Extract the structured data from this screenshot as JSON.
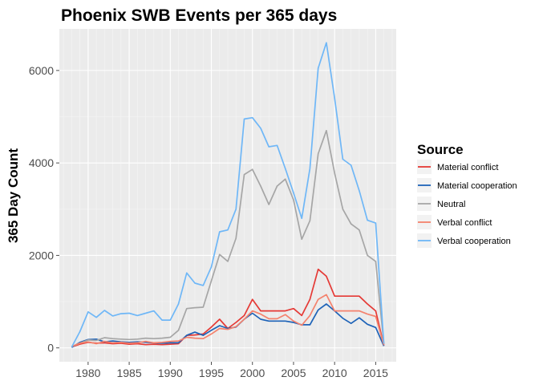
{
  "chart_data": {
    "type": "line",
    "title": "Phoenix SWB Events per 365 days",
    "xlabel": "",
    "ylabel": "365 Day Count",
    "xlim": [
      1976.5,
      2017.5
    ],
    "ylim": [
      -300,
      6900
    ],
    "xticks": [
      1980,
      1985,
      1990,
      1995,
      2000,
      2005,
      2010,
      2015
    ],
    "yticks": [
      0,
      2000,
      4000,
      6000
    ],
    "grid": true,
    "legend": {
      "title": "Source",
      "position": "right"
    },
    "x": [
      1978,
      1979,
      1980,
      1981,
      1982,
      1983,
      1984,
      1985,
      1986,
      1987,
      1988,
      1989,
      1990,
      1991,
      1992,
      1993,
      1994,
      1995,
      1996,
      1997,
      1998,
      1999,
      2000,
      2001,
      2002,
      2003,
      2004,
      2005,
      2006,
      2007,
      2008,
      2009,
      2010,
      2011,
      2012,
      2013,
      2014,
      2015,
      2016
    ],
    "series": [
      {
        "name": "Material conflict",
        "color": "#e53935",
        "values": [
          20,
          80,
          120,
          100,
          110,
          90,
          100,
          80,
          90,
          70,
          80,
          70,
          80,
          90,
          270,
          280,
          300,
          450,
          620,
          420,
          550,
          700,
          1050,
          800,
          800,
          800,
          800,
          850,
          700,
          1050,
          1700,
          1550,
          1120,
          1120,
          1120,
          1120,
          950,
          800,
          50
        ]
      },
      {
        "name": "Material cooperation",
        "color": "#1e63b8",
        "values": [
          10,
          120,
          180,
          190,
          130,
          150,
          130,
          120,
          130,
          120,
          110,
          100,
          110,
          110,
          270,
          340,
          270,
          380,
          480,
          420,
          450,
          620,
          750,
          620,
          580,
          580,
          580,
          550,
          500,
          500,
          820,
          950,
          800,
          640,
          530,
          650,
          510,
          440,
          40
        ]
      },
      {
        "name": "Neutral",
        "color": "#a6a6a6",
        "values": [
          30,
          100,
          170,
          160,
          220,
          200,
          190,
          180,
          190,
          210,
          200,
          210,
          230,
          380,
          850,
          870,
          880,
          1450,
          2020,
          1870,
          2370,
          3750,
          3860,
          3500,
          3100,
          3500,
          3650,
          3200,
          2350,
          2750,
          4200,
          4700,
          3780,
          3000,
          2680,
          2550,
          2000,
          1870,
          80
        ]
      },
      {
        "name": "Verbal conflict",
        "color": "#f4826d",
        "values": [
          30,
          100,
          130,
          90,
          140,
          110,
          120,
          100,
          110,
          140,
          110,
          120,
          140,
          150,
          230,
          210,
          200,
          300,
          420,
          400,
          460,
          620,
          800,
          730,
          630,
          630,
          720,
          580,
          490,
          700,
          1050,
          1150,
          800,
          800,
          800,
          800,
          730,
          680,
          60
        ]
      },
      {
        "name": "Verbal cooperation",
        "color": "#6fb7f7",
        "values": [
          20,
          350,
          780,
          660,
          810,
          690,
          740,
          750,
          700,
          750,
          800,
          600,
          600,
          950,
          1620,
          1400,
          1350,
          1750,
          2510,
          2550,
          3000,
          4950,
          4980,
          4750,
          4350,
          4380,
          3880,
          3350,
          2800,
          3880,
          6050,
          6600,
          5400,
          4080,
          3950,
          3400,
          2760,
          2700,
          90
        ]
      }
    ]
  }
}
